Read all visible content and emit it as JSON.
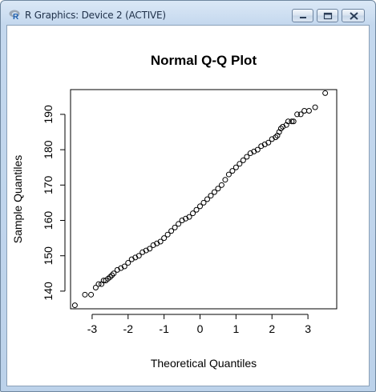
{
  "window": {
    "title": "R Graphics: Device 2 (ACTIVE)",
    "app_icon": "r-logo-icon",
    "controls": [
      "minimize-icon",
      "maximize-icon",
      "close-icon"
    ]
  },
  "chart_data": {
    "type": "scatter",
    "title": "Normal Q-Q Plot",
    "xlabel": "Theoretical Quantiles",
    "ylabel": "Sample Quantiles",
    "xlim": [
      -3.6,
      3.8
    ],
    "ylim": [
      135,
      197
    ],
    "x_ticks": [
      -3,
      -2,
      -1,
      0,
      1,
      2,
      3
    ],
    "y_ticks": [
      140,
      150,
      160,
      170,
      180,
      190
    ],
    "grid": false,
    "marker": "open-circle",
    "points": [
      [
        -3.48,
        136.0
      ],
      [
        -3.2,
        139.0
      ],
      [
        -3.03,
        139.0
      ],
      [
        -2.9,
        141.0
      ],
      [
        -2.82,
        142.0
      ],
      [
        -2.74,
        142.0
      ],
      [
        -2.68,
        143.0
      ],
      [
        -2.62,
        143.0
      ],
      [
        -2.56,
        143.5
      ],
      [
        -2.5,
        144.0
      ],
      [
        -2.45,
        144.5
      ],
      [
        -2.4,
        145.0
      ],
      [
        -2.3,
        146.0
      ],
      [
        -2.2,
        146.5
      ],
      [
        -2.1,
        147.0
      ],
      [
        -2.0,
        148.0
      ],
      [
        -1.9,
        149.0
      ],
      [
        -1.8,
        149.5
      ],
      [
        -1.7,
        150.0
      ],
      [
        -1.6,
        151.0
      ],
      [
        -1.5,
        151.5
      ],
      [
        -1.4,
        152.0
      ],
      [
        -1.3,
        153.0
      ],
      [
        -1.2,
        153.5
      ],
      [
        -1.1,
        154.0
      ],
      [
        -1.0,
        155.0
      ],
      [
        -0.9,
        156.0
      ],
      [
        -0.8,
        157.0
      ],
      [
        -0.7,
        158.0
      ],
      [
        -0.6,
        159.0
      ],
      [
        -0.5,
        160.0
      ],
      [
        -0.4,
        160.5
      ],
      [
        -0.3,
        161.0
      ],
      [
        -0.2,
        162.0
      ],
      [
        -0.1,
        163.0
      ],
      [
        0.0,
        164.0
      ],
      [
        0.1,
        165.0
      ],
      [
        0.2,
        166.0
      ],
      [
        0.3,
        167.0
      ],
      [
        0.4,
        168.0
      ],
      [
        0.5,
        169.0
      ],
      [
        0.6,
        170.0
      ],
      [
        0.7,
        171.5
      ],
      [
        0.8,
        173.0
      ],
      [
        0.9,
        174.0
      ],
      [
        1.0,
        175.0
      ],
      [
        1.1,
        176.0
      ],
      [
        1.2,
        177.0
      ],
      [
        1.3,
        178.0
      ],
      [
        1.4,
        179.0
      ],
      [
        1.5,
        179.5
      ],
      [
        1.6,
        180.0
      ],
      [
        1.7,
        181.0
      ],
      [
        1.8,
        181.5
      ],
      [
        1.9,
        182.0
      ],
      [
        2.0,
        183.0
      ],
      [
        2.1,
        183.5
      ],
      [
        2.15,
        184.0
      ],
      [
        2.2,
        185.0
      ],
      [
        2.25,
        186.0
      ],
      [
        2.3,
        186.5
      ],
      [
        2.4,
        187.0
      ],
      [
        2.45,
        188.0
      ],
      [
        2.55,
        188.0
      ],
      [
        2.6,
        188.0
      ],
      [
        2.7,
        190.0
      ],
      [
        2.8,
        190.0
      ],
      [
        2.9,
        191.0
      ],
      [
        3.03,
        191.0
      ],
      [
        3.2,
        192.0
      ],
      [
        3.48,
        196.0
      ]
    ]
  }
}
